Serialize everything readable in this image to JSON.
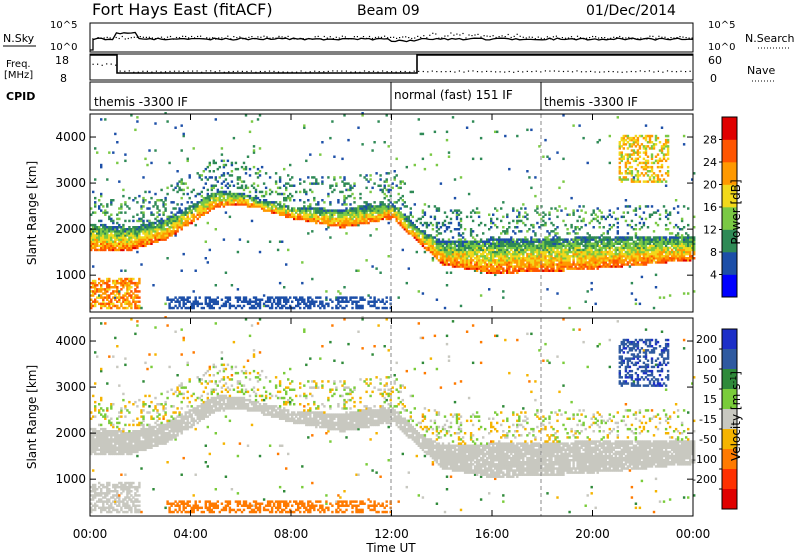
{
  "header": {
    "station": "Fort Hays East (fitACF)",
    "beam": "Beam 09",
    "date": "01/Dec/2014"
  },
  "top_panels": {
    "nsky_label": "N.Sky",
    "nsky_ticks": [
      "10^5",
      "10^0"
    ],
    "nsearch_label": "N.Search",
    "nsearch_ticks": [
      "10^5",
      "10^0"
    ],
    "freq_label_1": "Freq.",
    "freq_label_2": "[MHz]",
    "freq_ticks": [
      "18",
      "8"
    ],
    "nave_label": "Nave",
    "nave_ticks": [
      "60",
      "0"
    ],
    "cpid_label": "CPID",
    "cpid_segments": [
      {
        "label": "themis -3300 IF",
        "start_hour": 0
      },
      {
        "label": "normal (fast) 151 IF",
        "start_hour": 12
      },
      {
        "label": "themis -3300 IF",
        "start_hour": 18
      }
    ]
  },
  "chart_data": [
    {
      "type": "heatmap",
      "name": "power",
      "ylabel": "Slant Range [km]",
      "xlabel": "",
      "yticks": [
        "1000",
        "2000",
        "3000",
        "4000"
      ],
      "ylim": [
        200,
        4500
      ],
      "colorbar_label": "Power [dB]",
      "colorbar_ticks": [
        "4",
        "8",
        "12",
        "16",
        "20",
        "24",
        "28"
      ],
      "colorbar_colors": [
        "#0000ff",
        "#1c4fa8",
        "#2f8a56",
        "#7ac944",
        "#f2d91b",
        "#ff9900",
        "#ff5500",
        "#e00000"
      ]
    },
    {
      "type": "heatmap",
      "name": "velocity",
      "ylabel": "Slant Range [km]",
      "xlabel": "Time UT",
      "yticks": [
        "1000",
        "2000",
        "3000",
        "4000"
      ],
      "ylim": [
        200,
        4500
      ],
      "xticks": [
        "00:00",
        "04:00",
        "08:00",
        "12:00",
        "16:00",
        "20:00",
        "00:00"
      ],
      "colorbar_label": "Velocity [m s",
      "colorbar_label_sup": "-1",
      "colorbar_label_end": "]",
      "colorbar_ticks": [
        "200",
        "100",
        "50",
        "15",
        "-15",
        "-50",
        "-100",
        "-200"
      ],
      "colorbar_colors": [
        "#1c2fc8",
        "#2f5aa0",
        "#2f8a3a",
        "#7acc3a",
        "#c8c8c0",
        "#f5b400",
        "#ff7a00",
        "#ff3000",
        "#e00000"
      ]
    }
  ]
}
